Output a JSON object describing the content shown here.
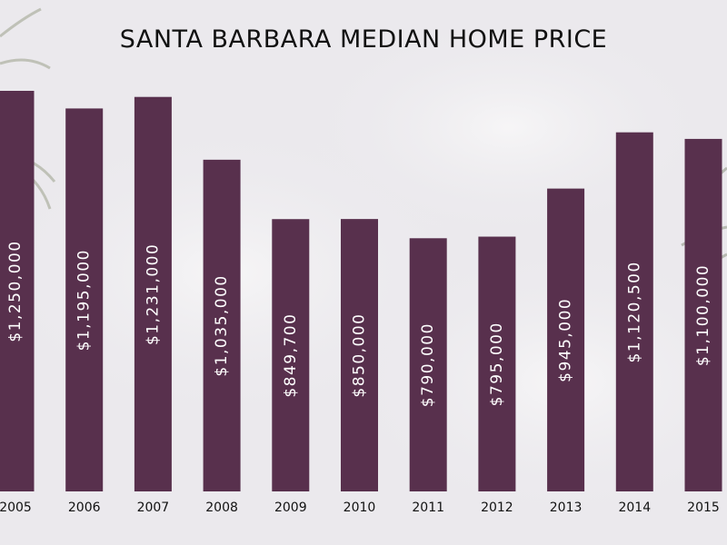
{
  "colors": {
    "bar": "#58304d",
    "bar_label": "#ffffff",
    "tick": "#111111",
    "background": "#ecebee"
  },
  "chart_data": {
    "type": "bar",
    "title": "SANTA BARBARA MEDIAN HOME PRICE",
    "xlabel": "",
    "ylabel": "",
    "grid": false,
    "legend": "none",
    "ylim": [
      0,
      1250000
    ],
    "categories": [
      "2005",
      "2006",
      "2007",
      "2008",
      "2009",
      "2010",
      "2011",
      "2012",
      "2013",
      "2014",
      "2015"
    ],
    "values": [
      1250000,
      1195000,
      1231000,
      1035000,
      849700,
      850000,
      790000,
      795000,
      945000,
      1120500,
      1100000
    ],
    "data_labels": [
      "$1,250,000",
      "$1,195,000",
      "$1,231,000",
      "$1,035,000",
      "$849,700",
      "$850,000",
      "$790,000",
      "$795,000",
      "$945,000",
      "$1,120,500",
      "$1,100,000"
    ]
  }
}
